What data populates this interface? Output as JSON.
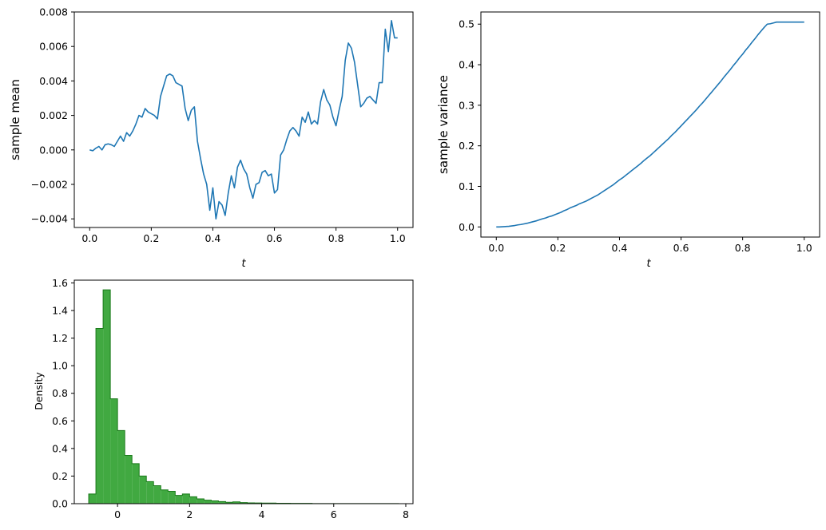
{
  "chart_data": [
    {
      "type": "line",
      "xlabel": "t",
      "ylabel": "sample mean",
      "xlim": [
        -0.05,
        1.05
      ],
      "ylim": [
        -0.0045,
        0.008
      ],
      "xticks": [
        0.0,
        0.2,
        0.4,
        0.6,
        0.8,
        1.0
      ],
      "xtick_labels": [
        "0.0",
        "0.2",
        "0.4",
        "0.6",
        "0.8",
        "1.0"
      ],
      "yticks": [
        -0.004,
        -0.002,
        0.0,
        0.002,
        0.004,
        0.006,
        0.008
      ],
      "ytick_labels": [
        "−0.004",
        "−0.002",
        "0.000",
        "0.002",
        "0.004",
        "0.006",
        "0.008"
      ],
      "color": "#1f77b4",
      "grid": false,
      "x": [
        0.0,
        0.01,
        0.02,
        0.03,
        0.04,
        0.05,
        0.06,
        0.07,
        0.08,
        0.09,
        0.1,
        0.11,
        0.12,
        0.13,
        0.14,
        0.15,
        0.16,
        0.17,
        0.18,
        0.19,
        0.2,
        0.21,
        0.22,
        0.23,
        0.24,
        0.25,
        0.26,
        0.27,
        0.28,
        0.29,
        0.3,
        0.31,
        0.32,
        0.33,
        0.34,
        0.35,
        0.36,
        0.37,
        0.38,
        0.39,
        0.4,
        0.41,
        0.42,
        0.43,
        0.44,
        0.45,
        0.46,
        0.47,
        0.48,
        0.49,
        0.5,
        0.51,
        0.52,
        0.53,
        0.54,
        0.55,
        0.56,
        0.57,
        0.58,
        0.59,
        0.6,
        0.61,
        0.62,
        0.63,
        0.64,
        0.65,
        0.66,
        0.67,
        0.68,
        0.69,
        0.7,
        0.71,
        0.72,
        0.73,
        0.74,
        0.75,
        0.76,
        0.77,
        0.78,
        0.79,
        0.8,
        0.81,
        0.82,
        0.83,
        0.84,
        0.85,
        0.86,
        0.87,
        0.88,
        0.89,
        0.9,
        0.91,
        0.92,
        0.93,
        0.94,
        0.95,
        0.96,
        0.97,
        0.98,
        0.99,
        1.0
      ],
      "y": [
        0.0,
        -5e-05,
        0.0001,
        0.0002,
        0.0,
        0.0003,
        0.00035,
        0.0003,
        0.0002,
        0.0005,
        0.0008,
        0.0005,
        0.001,
        0.0008,
        0.0011,
        0.0015,
        0.002,
        0.0019,
        0.0024,
        0.0022,
        0.0021,
        0.002,
        0.0018,
        0.0031,
        0.0037,
        0.0043,
        0.0044,
        0.0043,
        0.0039,
        0.0038,
        0.0037,
        0.0024,
        0.0017,
        0.0023,
        0.0025,
        0.0005,
        -0.0005,
        -0.0014,
        -0.002,
        -0.0035,
        -0.0022,
        -0.004,
        -0.003,
        -0.0032,
        -0.0038,
        -0.0025,
        -0.0015,
        -0.0022,
        -0.001,
        -0.0006,
        -0.0011,
        -0.0014,
        -0.0022,
        -0.0028,
        -0.002,
        -0.0019,
        -0.0013,
        -0.0012,
        -0.0015,
        -0.0014,
        -0.0025,
        -0.0023,
        -0.0003,
        0.0,
        0.0006,
        0.0011,
        0.0013,
        0.0011,
        0.0008,
        0.0019,
        0.0016,
        0.0022,
        0.0015,
        0.0017,
        0.0015,
        0.0028,
        0.0035,
        0.0029,
        0.0026,
        0.0019,
        0.0014,
        0.0023,
        0.0031,
        0.0052,
        0.0062,
        0.0059,
        0.0051,
        0.0038,
        0.0025,
        0.0027,
        0.003,
        0.0031,
        0.0029,
        0.0027,
        0.0039,
        0.0039,
        0.007,
        0.0057,
        0.0075,
        0.0065,
        0.0065
      ]
    },
    {
      "type": "line",
      "xlabel": "t",
      "ylabel": "sample variance",
      "xlim": [
        -0.05,
        1.05
      ],
      "ylim": [
        -0.025,
        0.53
      ],
      "xticks": [
        0.0,
        0.2,
        0.4,
        0.6,
        0.8,
        1.0
      ],
      "xtick_labels": [
        "0.0",
        "0.2",
        "0.4",
        "0.6",
        "0.8",
        "1.0"
      ],
      "yticks": [
        0.0,
        0.1,
        0.2,
        0.3,
        0.4,
        0.5
      ],
      "ytick_labels": [
        "0.0",
        "0.1",
        "0.2",
        "0.3",
        "0.4",
        "0.5"
      ],
      "color": "#1f77b4",
      "grid": false,
      "x": [
        0.0,
        0.01,
        0.02,
        0.03,
        0.04,
        0.05,
        0.06,
        0.07,
        0.08,
        0.09,
        0.1,
        0.11,
        0.12,
        0.13,
        0.14,
        0.15,
        0.16,
        0.17,
        0.18,
        0.19,
        0.2,
        0.21,
        0.22,
        0.23,
        0.24,
        0.25,
        0.26,
        0.27,
        0.28,
        0.29,
        0.3,
        0.31,
        0.32,
        0.33,
        0.34,
        0.35,
        0.36,
        0.37,
        0.38,
        0.39,
        0.4,
        0.41,
        0.42,
        0.43,
        0.44,
        0.45,
        0.46,
        0.47,
        0.48,
        0.49,
        0.5,
        0.51,
        0.52,
        0.53,
        0.54,
        0.55,
        0.56,
        0.57,
        0.58,
        0.59,
        0.6,
        0.61,
        0.62,
        0.63,
        0.64,
        0.65,
        0.66,
        0.67,
        0.68,
        0.69,
        0.7,
        0.71,
        0.72,
        0.73,
        0.74,
        0.75,
        0.76,
        0.77,
        0.78,
        0.79,
        0.8,
        0.81,
        0.82,
        0.83,
        0.84,
        0.85,
        0.86,
        0.87,
        0.88,
        0.89,
        0.9,
        0.91,
        0.92,
        0.93,
        0.94,
        0.95,
        0.96,
        0.97,
        0.98,
        0.99,
        1.0
      ],
      "y": [
        0.0,
        0.0,
        0.0005,
        0.001,
        0.0015,
        0.0025,
        0.0035,
        0.005,
        0.006,
        0.0075,
        0.009,
        0.011,
        0.013,
        0.015,
        0.0175,
        0.02,
        0.022,
        0.025,
        0.027,
        0.03,
        0.033,
        0.036,
        0.04,
        0.043,
        0.047,
        0.05,
        0.053,
        0.057,
        0.06,
        0.063,
        0.067,
        0.071,
        0.075,
        0.079,
        0.084,
        0.089,
        0.094,
        0.099,
        0.104,
        0.11,
        0.116,
        0.121,
        0.127,
        0.133,
        0.139,
        0.145,
        0.151,
        0.157,
        0.164,
        0.17,
        0.176,
        0.183,
        0.19,
        0.197,
        0.204,
        0.211,
        0.218,
        0.226,
        0.233,
        0.241,
        0.249,
        0.257,
        0.265,
        0.273,
        0.281,
        0.289,
        0.298,
        0.306,
        0.315,
        0.324,
        0.333,
        0.342,
        0.351,
        0.36,
        0.37,
        0.379,
        0.388,
        0.398,
        0.407,
        0.417,
        0.426,
        0.436,
        0.445,
        0.455,
        0.464,
        0.474,
        0.483,
        0.492,
        0.5,
        0.501,
        0.503,
        0.505,
        0.505,
        0.505,
        0.505,
        0.505,
        0.505,
        0.505,
        0.505,
        0.505,
        0.505
      ]
    },
    {
      "type": "bar",
      "subtype": "histogram-step-filled",
      "ylabel": "Density",
      "xlabel": "",
      "xlim": [
        -1.2,
        8.2
      ],
      "ylim": [
        0.0,
        1.62
      ],
      "xticks": [
        0,
        2,
        4,
        6,
        8
      ],
      "xtick_labels": [
        "0",
        "2",
        "4",
        "6",
        "8"
      ],
      "yticks": [
        0.0,
        0.2,
        0.4,
        0.6,
        0.8,
        1.0,
        1.2,
        1.4,
        1.6
      ],
      "ytick_labels": [
        "0.0",
        "0.2",
        "0.4",
        "0.6",
        "0.8",
        "1.0",
        "1.2",
        "1.4",
        "1.6"
      ],
      "fill_color": "#2ca02c",
      "edge_color": "#1a7a1a",
      "grid": false,
      "bin_edges": [
        -0.8,
        -0.6,
        -0.4,
        -0.2,
        0.0,
        0.2,
        0.4,
        0.6,
        0.8,
        1.0,
        1.2,
        1.4,
        1.6,
        1.8,
        2.0,
        2.2,
        2.4,
        2.6,
        2.8,
        3.0,
        3.2,
        3.4,
        3.6,
        3.8,
        4.0,
        4.2,
        4.4,
        4.6,
        4.8,
        5.0,
        5.2,
        5.4,
        5.6,
        5.8,
        6.0,
        6.2,
        6.4,
        6.6,
        6.8,
        7.0,
        7.2,
        7.4,
        7.6,
        7.8
      ],
      "values": [
        0.07,
        1.27,
        1.55,
        0.76,
        0.53,
        0.35,
        0.29,
        0.2,
        0.16,
        0.13,
        0.1,
        0.09,
        0.06,
        0.07,
        0.05,
        0.035,
        0.025,
        0.02,
        0.015,
        0.01,
        0.013,
        0.008,
        0.006,
        0.005,
        0.004,
        0.004,
        0.003,
        0.003,
        0.002,
        0.002,
        0.002,
        0.001,
        0.001,
        0.001,
        0.001,
        0.001,
        0.001,
        0.0005,
        0.0005,
        0.0005,
        0.0005,
        0.0005,
        0.0005
      ]
    }
  ]
}
